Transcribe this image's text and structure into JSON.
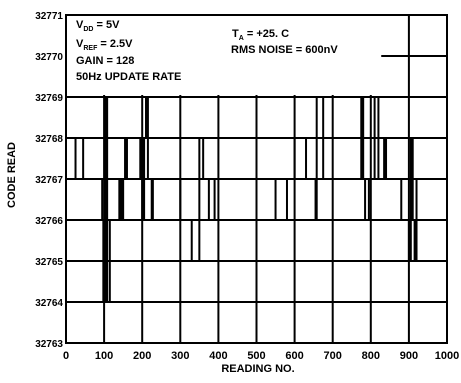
{
  "chart_data": {
    "type": "line",
    "title": "",
    "xlabel": "READING NO.",
    "ylabel": "CODE READ",
    "xlim": [
      0,
      1000
    ],
    "ylim": [
      32763,
      32771
    ],
    "grid": true,
    "x_ticks": [
      "0",
      "100",
      "200",
      "300",
      "400",
      "500",
      "600",
      "700",
      "800",
      "900",
      "1000"
    ],
    "y_ticks": [
      "32763",
      "32764",
      "32765",
      "32766",
      "32767",
      "32768",
      "32769",
      "32770",
      "32771"
    ],
    "annotations": {
      "vdd": {
        "main": "V",
        "sub": "DD",
        "rest": " = 5V"
      },
      "vref": {
        "main": "V",
        "sub": "REF",
        "rest": " = 2.5V"
      },
      "gain": "GAIN = 128",
      "rate": "50Hz UPDATE RATE",
      "ta": {
        "main": "T",
        "sub": "A",
        "rest": " = +25. C"
      },
      "noise": "RMS NOISE = 600nV"
    },
    "series": [
      {
        "x": [
          0,
          20,
          25,
          45,
          95,
          98,
          105,
          108,
          115,
          140,
          145,
          150,
          155,
          160,
          170,
          195,
          200,
          205,
          210,
          215,
          225,
          228,
          260,
          290,
          300,
          330,
          350,
          360,
          370,
          375,
          390,
          400,
          430,
          450,
          470,
          500,
          540,
          550,
          580,
          595,
          600,
          630,
          655,
          658,
          675,
          680,
          700,
          740,
          770,
          775,
          780,
          785,
          795,
          810,
          820,
          835,
          840,
          860,
          870,
          880,
          895,
          900,
          905,
          910,
          915,
          920,
          960,
          1000
        ],
        "y": [
          32767,
          32767,
          32768,
          32767,
          32766,
          32764,
          32769,
          32764,
          32766,
          32767,
          32766,
          32767,
          32768,
          32767,
          32767,
          32768,
          32766,
          32768,
          32769,
          32767,
          32766,
          32767,
          32767,
          32767,
          32766,
          32765,
          32768,
          32767,
          32767,
          32766,
          32767,
          32767,
          32767,
          32767,
          32767,
          32767,
          32767,
          32766,
          32767,
          32767,
          32768,
          32767,
          32766,
          32769,
          32767,
          32767,
          32767,
          32767,
          32767,
          32769,
          32767,
          32766,
          32767,
          32769,
          32767,
          32768,
          32767,
          32767,
          32767,
          32766,
          32766,
          32765,
          32768,
          32766,
          32765,
          32767,
          32767,
          32767
        ]
      }
    ]
  }
}
